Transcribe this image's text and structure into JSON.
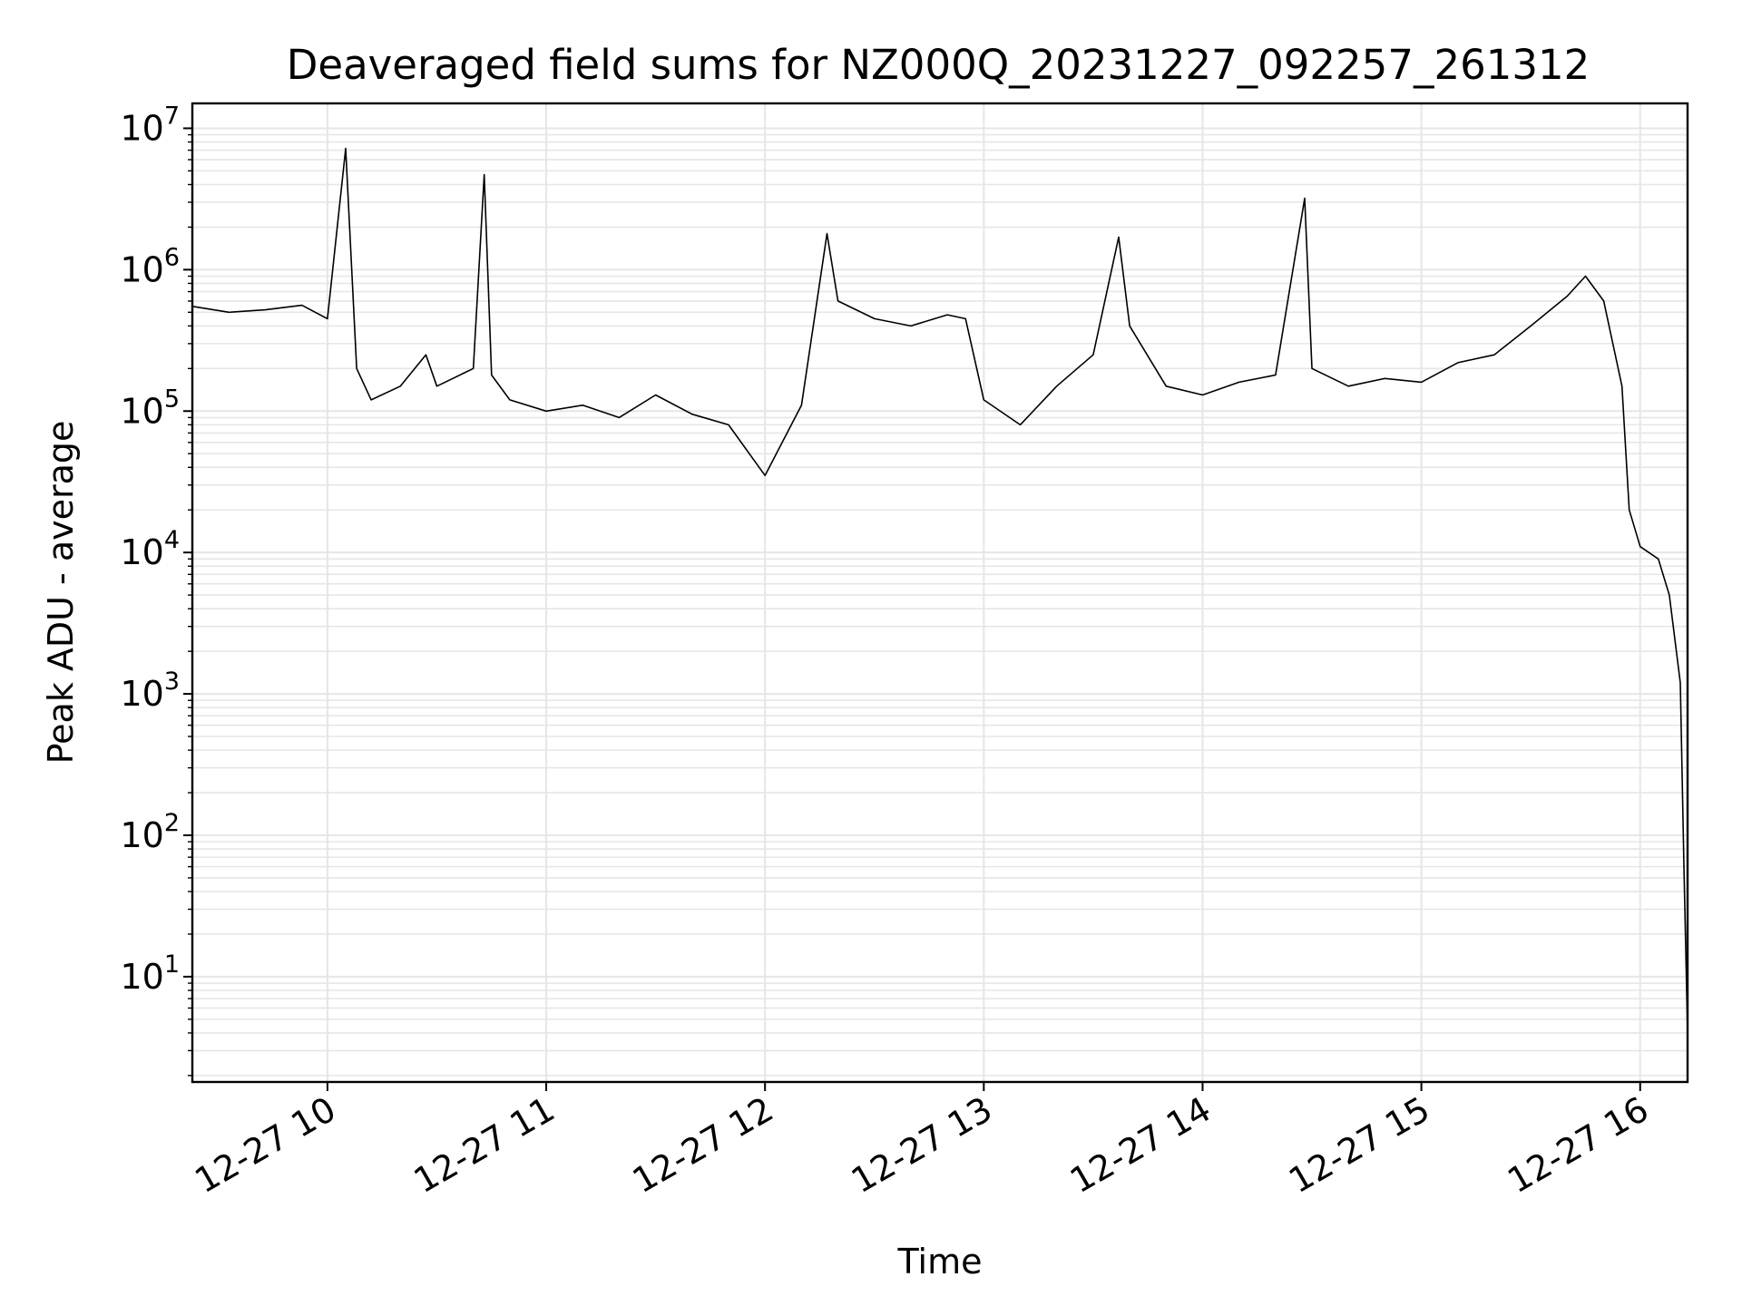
{
  "chart_data": {
    "type": "line",
    "title": "Deaveraged field sums for NZ000Q_20231227_092257_261312",
    "xlabel": "Time",
    "ylabel": "Peak ADU - average",
    "yscale": "log",
    "xlim": [
      "2023-12-27T09:22:57",
      "2023-12-27T16:13:00"
    ],
    "ylim": [
      1.8,
      15000000
    ],
    "grid": true,
    "legend": "none",
    "line_color": "#000000",
    "x_ticks": [
      {
        "value": "2023-12-27T10:00",
        "label": "12-27 10"
      },
      {
        "value": "2023-12-27T11:00",
        "label": "12-27 11"
      },
      {
        "value": "2023-12-27T12:00",
        "label": "12-27 12"
      },
      {
        "value": "2023-12-27T13:00",
        "label": "12-27 13"
      },
      {
        "value": "2023-12-27T14:00",
        "label": "12-27 14"
      },
      {
        "value": "2023-12-27T15:00",
        "label": "12-27 15"
      },
      {
        "value": "2023-12-27T16:00",
        "label": "12-27 16"
      }
    ],
    "y_ticks": [
      {
        "value": 10,
        "base": "10",
        "exp": "1"
      },
      {
        "value": 100,
        "base": "10",
        "exp": "2"
      },
      {
        "value": 1000,
        "base": "10",
        "exp": "3"
      },
      {
        "value": 10000,
        "base": "10",
        "exp": "4"
      },
      {
        "value": 100000,
        "base": "10",
        "exp": "5"
      },
      {
        "value": 1000000,
        "base": "10",
        "exp": "6"
      },
      {
        "value": 10000000,
        "base": "10",
        "exp": "7"
      }
    ],
    "series": [
      {
        "x": [
          "2023-12-27T09:23",
          "2023-12-27T09:33",
          "2023-12-27T09:43",
          "2023-12-27T09:53",
          "2023-12-27T10:00",
          "2023-12-27T10:05",
          "2023-12-27T10:08",
          "2023-12-27T10:12",
          "2023-12-27T10:20",
          "2023-12-27T10:27",
          "2023-12-27T10:30",
          "2023-12-27T10:40",
          "2023-12-27T10:43",
          "2023-12-27T10:45",
          "2023-12-27T10:50",
          "2023-12-27T11:00",
          "2023-12-27T11:10",
          "2023-12-27T11:20",
          "2023-12-27T11:30",
          "2023-12-27T11:40",
          "2023-12-27T11:50",
          "2023-12-27T12:00",
          "2023-12-27T12:10",
          "2023-12-27T12:17",
          "2023-12-27T12:20",
          "2023-12-27T12:30",
          "2023-12-27T12:40",
          "2023-12-27T12:50",
          "2023-12-27T12:55",
          "2023-12-27T13:00",
          "2023-12-27T13:10",
          "2023-12-27T13:20",
          "2023-12-27T13:30",
          "2023-12-27T13:37",
          "2023-12-27T13:40",
          "2023-12-27T13:50",
          "2023-12-27T14:00",
          "2023-12-27T14:10",
          "2023-12-27T14:20",
          "2023-12-27T14:28",
          "2023-12-27T14:30",
          "2023-12-27T14:40",
          "2023-12-27T14:50",
          "2023-12-27T15:00",
          "2023-12-27T15:10",
          "2023-12-27T15:20",
          "2023-12-27T15:30",
          "2023-12-27T15:40",
          "2023-12-27T15:45",
          "2023-12-27T15:50",
          "2023-12-27T15:55",
          "2023-12-27T15:57",
          "2023-12-27T16:00",
          "2023-12-27T16:05",
          "2023-12-27T16:08",
          "2023-12-27T16:11",
          "2023-12-27T16:12",
          "2023-12-27T16:13"
        ],
        "y": [
          550000,
          500000,
          520000,
          560000,
          450000,
          7200000,
          200000,
          120000,
          150000,
          250000,
          150000,
          200000,
          4700000,
          180000,
          120000,
          100000,
          110000,
          90000,
          130000,
          95000,
          80000,
          35000,
          110000,
          1800000,
          600000,
          450000,
          400000,
          480000,
          450000,
          120000,
          80000,
          150000,
          250000,
          1700000,
          400000,
          150000,
          130000,
          160000,
          180000,
          3200000,
          200000,
          150000,
          170000,
          160000,
          220000,
          250000,
          400000,
          650000,
          900000,
          600000,
          150000,
          20000,
          11000,
          9000,
          5000,
          1200,
          60,
          4
        ]
      }
    ]
  }
}
